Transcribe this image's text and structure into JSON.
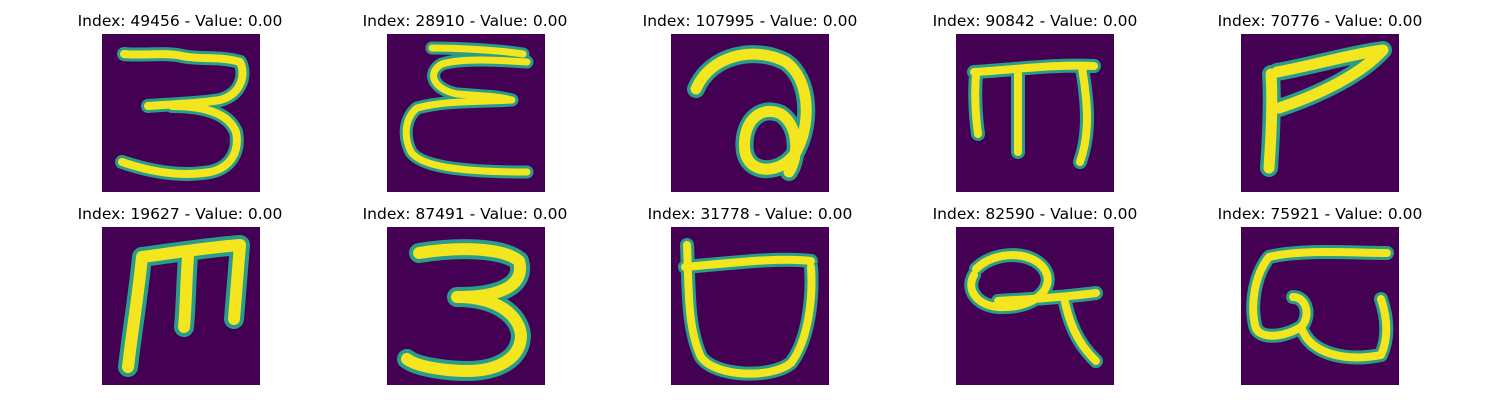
{
  "panels": [
    {
      "title": "Index: 49456 - Value: 0.00"
    },
    {
      "title": "Index: 28910 - Value: 0.00"
    },
    {
      "title": "Index: 107995 - Value: 0.00"
    },
    {
      "title": "Index: 90842 - Value: 0.00"
    },
    {
      "title": "Index: 70776 - Value: 0.00"
    },
    {
      "title": "Index: 19627 - Value: 0.00"
    },
    {
      "title": "Index: 87491 - Value: 0.00"
    },
    {
      "title": "Index: 31778 - Value: 0.00"
    },
    {
      "title": "Index: 82590 - Value: 0.00"
    },
    {
      "title": "Index: 75921 - Value: 0.00"
    }
  ],
  "colors": {
    "background": "#440154",
    "stroke_core": "#f4e61e",
    "stroke_edge": "#2a9d8a",
    "title_text": "#000000"
  }
}
